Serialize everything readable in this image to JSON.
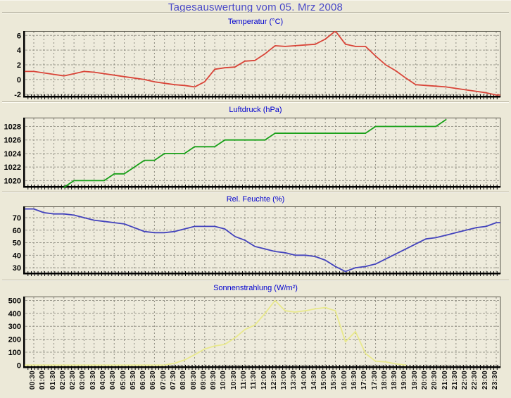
{
  "page": {
    "title": "Tagesauswertung vom 05. Mrz 2008",
    "background_color": "#ece9d8",
    "plot_background_color": "#eeebdc",
    "title_color": "#4a4ac8",
    "chart_title_color": "#0000d0"
  },
  "axis": {
    "x_tick_interval": "30 min",
    "x_first": "00:30",
    "x_last": "23:30"
  },
  "chart_data": [
    {
      "type": "line",
      "title": "Temperatur (°C)",
      "color": "#d94438",
      "ylim": [
        -2.4,
        6.6
      ],
      "yticks": [
        6,
        4,
        2,
        0,
        -2
      ],
      "grid": true,
      "legend": false,
      "categories": [
        "00:30",
        "01:00",
        "01:30",
        "02:00",
        "02:30",
        "03:00",
        "03:30",
        "04:00",
        "04:30",
        "05:00",
        "05:30",
        "06:00",
        "06:30",
        "07:00",
        "07:30",
        "08:00",
        "08:30",
        "09:00",
        "09:30",
        "10:00",
        "10:30",
        "11:00",
        "11:30",
        "12:00",
        "12:30",
        "13:00",
        "13:30",
        "14:00",
        "14:30",
        "15:00",
        "15:30",
        "16:00",
        "16:30",
        "17:00",
        "17:30",
        "18:00",
        "18:30",
        "19:00",
        "19:30",
        "20:00",
        "20:30",
        "21:00",
        "21:30",
        "22:00",
        "22:30",
        "23:00",
        "23:30"
      ],
      "values": [
        1.1,
        0.9,
        0.7,
        0.5,
        0.8,
        1.1,
        1.0,
        0.8,
        0.6,
        0.4,
        0.2,
        0.0,
        -0.3,
        -0.5,
        -0.7,
        -0.8,
        -1.0,
        -0.3,
        1.4,
        1.6,
        1.7,
        2.5,
        2.6,
        3.5,
        4.6,
        4.5,
        4.6,
        4.7,
        4.8,
        5.5,
        6.6,
        4.8,
        4.5,
        4.5,
        3.2,
        2.0,
        1.2,
        0.2,
        -0.7,
        -0.8,
        -0.9,
        -1.0,
        -1.2,
        -1.4,
        -1.6,
        -1.8,
        -2.1
      ]
    },
    {
      "type": "line",
      "title": "Luftdruck (hPa)",
      "color": "#17a017",
      "ylim": [
        1019,
        1029.3
      ],
      "yticks": [
        1028,
        1026,
        1024,
        1022,
        1020
      ],
      "grid": true,
      "legend": false,
      "categories": [
        "00:30",
        "01:00",
        "01:30",
        "02:00",
        "02:30",
        "03:00",
        "03:30",
        "04:00",
        "04:30",
        "05:00",
        "05:30",
        "06:00",
        "06:30",
        "07:00",
        "07:30",
        "08:00",
        "08:30",
        "09:00",
        "09:30",
        "10:00",
        "10:30",
        "11:00",
        "11:30",
        "12:00",
        "12:30",
        "13:00",
        "13:30",
        "14:00",
        "14:30",
        "15:00",
        "15:30",
        "16:00",
        "16:30",
        "17:00",
        "17:30",
        "18:00",
        "18:30",
        "19:00",
        "19:30",
        "20:00",
        "20:30",
        "21:00",
        "21:30",
        "22:00",
        "22:30",
        "23:00",
        "23:30"
      ],
      "values": [
        null,
        null,
        null,
        1019,
        1020,
        1020,
        1020,
        1020,
        1021,
        1021,
        1022,
        1023,
        1023,
        1024,
        1024,
        1024,
        1025,
        1025,
        1025,
        1026,
        1026,
        1026,
        1026,
        1026,
        1027,
        1027,
        1027,
        1027,
        1027,
        1027,
        1027,
        1027,
        1027,
        1027,
        1028,
        1028,
        1028,
        1028,
        1028,
        1028,
        1028,
        1029,
        null,
        null,
        null,
        null,
        null
      ]
    },
    {
      "type": "line",
      "title": "Rel. Feuchte (%)",
      "color": "#4343bd",
      "ylim": [
        25,
        79
      ],
      "yticks": [
        70,
        60,
        50,
        40,
        30
      ],
      "grid": true,
      "legend": false,
      "categories": [
        "00:30",
        "01:00",
        "01:30",
        "02:00",
        "02:30",
        "03:00",
        "03:30",
        "04:00",
        "04:30",
        "05:00",
        "05:30",
        "06:00",
        "06:30",
        "07:00",
        "07:30",
        "08:00",
        "08:30",
        "09:00",
        "09:30",
        "10:00",
        "10:30",
        "11:00",
        "11:30",
        "12:00",
        "12:30",
        "13:00",
        "13:30",
        "14:00",
        "14:30",
        "15:00",
        "15:30",
        "16:00",
        "16:30",
        "17:00",
        "17:30",
        "18:00",
        "18:30",
        "19:00",
        "19:30",
        "20:00",
        "20:30",
        "21:00",
        "21:30",
        "22:00",
        "22:30",
        "23:00",
        "23:30"
      ],
      "values": [
        77,
        74,
        73,
        73,
        72,
        70,
        68,
        67,
        66,
        65,
        62,
        59,
        58,
        58,
        59,
        61,
        63,
        63,
        63,
        61,
        55,
        52,
        47,
        45,
        43,
        42,
        40,
        40,
        39,
        36,
        31,
        27,
        30,
        31,
        33,
        37,
        41,
        45,
        49,
        53,
        54,
        56,
        58,
        60,
        62,
        63,
        66
      ]
    },
    {
      "type": "line",
      "title": "Sonnenstrahlung (W/m²)",
      "color": "#e9e98c",
      "ylim": [
        -20,
        530
      ],
      "yticks": [
        500,
        400,
        300,
        200,
        100,
        0
      ],
      "grid": true,
      "legend": false,
      "categories": [
        "00:30",
        "01:00",
        "01:30",
        "02:00",
        "02:30",
        "03:00",
        "03:30",
        "04:00",
        "04:30",
        "05:00",
        "05:30",
        "06:00",
        "06:30",
        "07:00",
        "07:30",
        "08:00",
        "08:30",
        "09:00",
        "09:30",
        "10:00",
        "10:30",
        "11:00",
        "11:30",
        "12:00",
        "12:30",
        "13:00",
        "13:30",
        "14:00",
        "14:30",
        "15:00",
        "15:30",
        "16:00",
        "16:30",
        "17:00",
        "17:30",
        "18:00",
        "18:30",
        "19:00",
        "19:30",
        "20:00",
        "20:30",
        "21:00",
        "21:30",
        "22:00",
        "22:30",
        "23:00",
        "23:30"
      ],
      "values": [
        0,
        0,
        0,
        0,
        0,
        0,
        0,
        0,
        0,
        0,
        0,
        0,
        0,
        0,
        15,
        40,
        80,
        125,
        148,
        160,
        210,
        275,
        310,
        400,
        500,
        420,
        410,
        420,
        435,
        445,
        420,
        180,
        260,
        90,
        30,
        25,
        10,
        0,
        null,
        null,
        null,
        null,
        null,
        null,
        null,
        null,
        null
      ]
    }
  ]
}
